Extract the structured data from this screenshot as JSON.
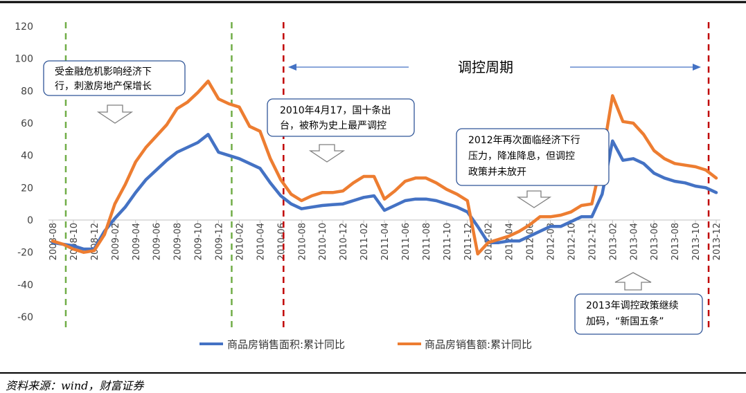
{
  "source_note": "资料来源：wind，财富证券",
  "chart_data": {
    "type": "line",
    "ylim": [
      -60,
      120
    ],
    "y_ticks": [
      -60,
      -40,
      -20,
      0,
      20,
      40,
      60,
      80,
      100,
      120
    ],
    "x": [
      "2008-08",
      "2008-09",
      "2008-10",
      "2008-11",
      "2008-12",
      "2009-01",
      "2009-02",
      "2009-03",
      "2009-04",
      "2009-05",
      "2009-06",
      "2009-07",
      "2009-08",
      "2009-09",
      "2009-10",
      "2009-11",
      "2009-12",
      "2010-01",
      "2010-02",
      "2010-03",
      "2010-04",
      "2010-05",
      "2010-06",
      "2010-07",
      "2010-08",
      "2010-09",
      "2010-10",
      "2010-11",
      "2010-12",
      "2011-01",
      "2011-02",
      "2011-03",
      "2011-04",
      "2011-05",
      "2011-06",
      "2011-07",
      "2011-08",
      "2011-09",
      "2011-10",
      "2011-11",
      "2011-12",
      "2012-01",
      "2012-02",
      "2012-03",
      "2012-04",
      "2012-05",
      "2012-06",
      "2012-07",
      "2012-08",
      "2012-09",
      "2012-10",
      "2012-11",
      "2012-12",
      "2013-01",
      "2013-02",
      "2013-03",
      "2013-04",
      "2013-05",
      "2013-06",
      "2013-07",
      "2013-08",
      "2013-09",
      "2013-10",
      "2013-11",
      "2013-12"
    ],
    "x_tick_labels": [
      "2008-08",
      "2008-10",
      "2008-12",
      "2009-02",
      "2009-04",
      "2009-06",
      "2009-08",
      "2009-10",
      "2009-12",
      "2010-02",
      "2010-04",
      "2010-06",
      "2010-08",
      "2010-10",
      "2010-12",
      "2011-02",
      "2011-04",
      "2011-06",
      "2011-08",
      "2011-10",
      "2011-12",
      "2012-02",
      "2012-04",
      "2012-06",
      "2012-08",
      "2012-10",
      "2012-12",
      "2013-02",
      "2013-04",
      "2013-06",
      "2013-08",
      "2013-10",
      "2013-12"
    ],
    "series": [
      {
        "name": "商品房销售面积:累计同比",
        "color": "#4472C4",
        "values": [
          -14,
          -15,
          -16,
          -18,
          -18,
          -7,
          1,
          8,
          17,
          25,
          31,
          37,
          42,
          45,
          48,
          53,
          42,
          40,
          38,
          35,
          32,
          23,
          15,
          10,
          7,
          8,
          9,
          9.5,
          10,
          12,
          14,
          15,
          6,
          9,
          12,
          13,
          13,
          12,
          10,
          8,
          5,
          -4,
          -14,
          -14,
          -13,
          -13,
          -10,
          -7,
          -4,
          -4,
          -1,
          2,
          2,
          16,
          49,
          37,
          38,
          35,
          29,
          26,
          24,
          23,
          21,
          20,
          17
        ]
      },
      {
        "name": "商品房销售额:累计同比",
        "color": "#ED7D31",
        "values": [
          -13,
          -15,
          -18,
          -20,
          -19,
          -9,
          10,
          22,
          36,
          45,
          52,
          59,
          69,
          73,
          79,
          86,
          75,
          72,
          70,
          58,
          55,
          38,
          25,
          16,
          12,
          15,
          17,
          17,
          18,
          23,
          27,
          27,
          13,
          18,
          24,
          26,
          26,
          23,
          19,
          16,
          12,
          -21,
          -14,
          -12,
          -10,
          -7,
          -3,
          2,
          2,
          3,
          5,
          9,
          10,
          38,
          77,
          61,
          60,
          53,
          43,
          38,
          35,
          34,
          33,
          31,
          26
        ]
      }
    ],
    "vlines": [
      {
        "at": "2008-09",
        "color": "#70AD47",
        "style": "dash"
      },
      {
        "at": "2010-01",
        "color": "#70AD47",
        "style": "dash"
      },
      {
        "at": "2010-06",
        "color": "#C00000",
        "style": "dash"
      },
      {
        "at": "2013-11",
        "color": "#C00000",
        "style": "dash"
      }
    ],
    "annotations": [
      {
        "lines": [
          "受金融危机影响经济下",
          "行，刺激房地产保增长"
        ]
      },
      {
        "lines": [
          "2010年4月17，国十条出",
          "台，被称为史上最严调控"
        ]
      },
      {
        "lines": [
          "2012年再次面临经济下行",
          "压力，降准降息，但调控",
          "政策并未放开"
        ]
      },
      {
        "lines": [
          "2013年调控政策继续",
          "加码，“新国五条”"
        ]
      }
    ],
    "period_label": "调控周期",
    "legend_position": "bottom"
  }
}
